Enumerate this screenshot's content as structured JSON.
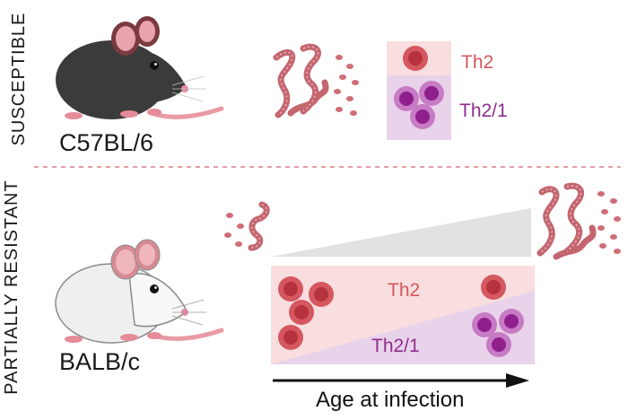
{
  "rows": {
    "top_label": "SUSCEPTIBLE",
    "bottom_label": "PARTIALLY RESISTANT"
  },
  "strains": {
    "top": "C57BL/6",
    "bottom": "BALB/c"
  },
  "cells": {
    "th2": "Th2",
    "th21": "Th2/1"
  },
  "axis": {
    "label": "Age at infection"
  },
  "colors": {
    "th2_cell": "#d5575f",
    "th2_cell_core": "#b6323d",
    "th21_cell": "#c77bc5",
    "th21_cell_core": "#8f1f8c",
    "th2_panel": "#f8dede",
    "th21_panel": "#e9d3ea",
    "worm": "#c46670",
    "divider": "#e07d86",
    "wedge": "#e2e2e2"
  },
  "icons": [
    "black-mouse-icon",
    "white-mouse-icon",
    "worm-icon",
    "egg-icon",
    "arrow-icon"
  ]
}
